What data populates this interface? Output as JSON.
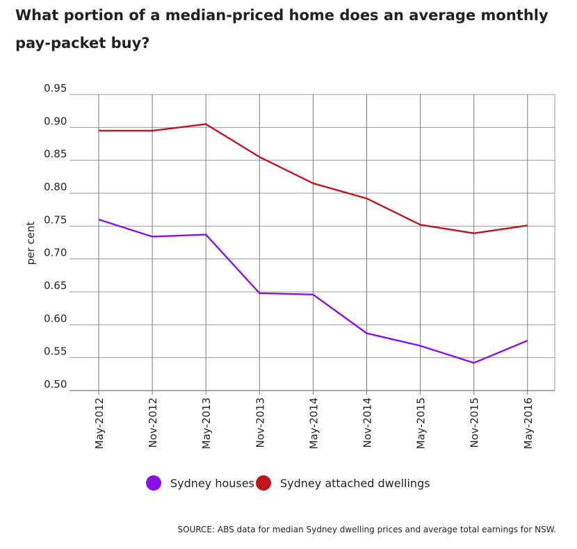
{
  "chart_data": {
    "type": "line",
    "title": "What portion of a median-priced home does an average monthly pay-packet buy?",
    "ylabel": "per cent",
    "xlabel": "",
    "ylim": [
      0.5,
      0.95
    ],
    "yticks": [
      "0.95",
      "0.90",
      "0.85",
      "0.80",
      "0.75",
      "0.70",
      "0.65",
      "0.60",
      "0.55",
      "0.50"
    ],
    "categories": [
      "May-2012",
      "Nov-2012",
      "May-2013",
      "Nov-2013",
      "May-2014",
      "Nov-2014",
      "May-2015",
      "Nov-2015",
      "May-2016"
    ],
    "grid": true,
    "legend_position": "bottom",
    "series": [
      {
        "name": "Sydney houses",
        "color": "#8b10e8",
        "values": [
          0.76,
          0.734,
          0.737,
          0.648,
          0.646,
          0.587,
          0.568,
          0.542,
          0.576
        ]
      },
      {
        "name": "Sydney attached dwellings",
        "color": "#c0141c",
        "values": [
          0.895,
          0.895,
          0.905,
          0.855,
          0.815,
          0.792,
          0.752,
          0.739,
          0.751
        ]
      }
    ],
    "source": "SOURCE: ABS data for median Sydney dwelling prices and average total earnings for NSW."
  }
}
